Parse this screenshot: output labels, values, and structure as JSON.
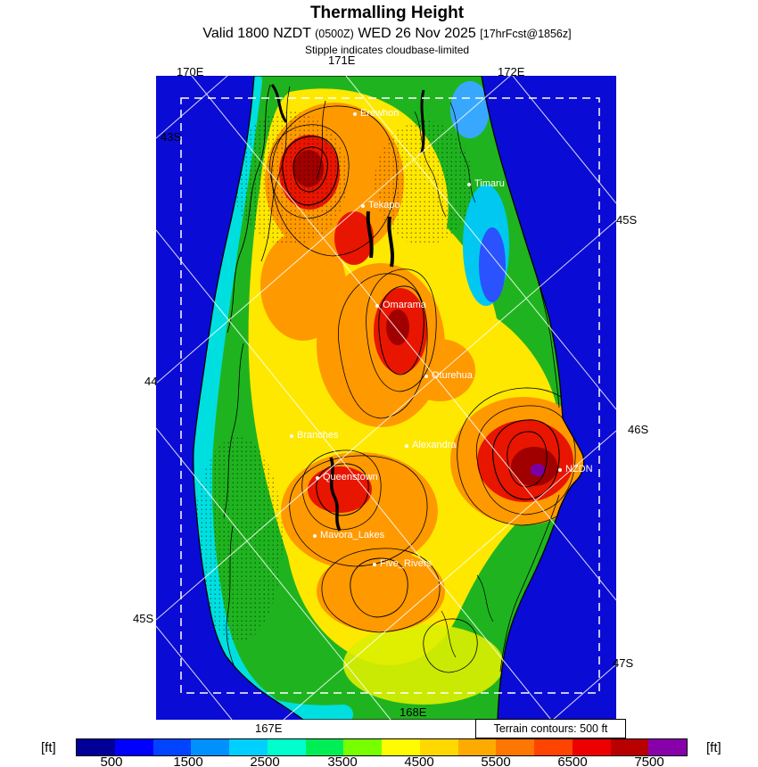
{
  "header": {
    "title": "Thermalling Height",
    "valid_prefix": "Valid 1800 NZDT",
    "valid_zulu": "(0500Z)",
    "valid_date": "WED 26 Nov 2025",
    "forecast_ref": "[17hrFcst@1856z]",
    "subtitle": "Stipple indicates cloudbase-limited"
  },
  "map": {
    "grid_labels": {
      "top": [
        "170E",
        "171E",
        "172E"
      ],
      "bottom": [
        "167E",
        "168E"
      ],
      "left": [
        "43S",
        "44",
        "45S"
      ],
      "right": [
        "45S",
        "46S",
        "47S"
      ]
    },
    "places": [
      {
        "name": "Erewhon"
      },
      {
        "name": "Timaru"
      },
      {
        "name": "Tekapo"
      },
      {
        "name": "Omarama"
      },
      {
        "name": "Oturehua"
      },
      {
        "name": "Branches"
      },
      {
        "name": "Alexandra"
      },
      {
        "name": "Queenstown"
      },
      {
        "name": "NZDN"
      },
      {
        "name": "Mavora_Lakes"
      },
      {
        "name": "Five_Rivers"
      }
    ],
    "terrain_note": "Terrain contours: 500 ft",
    "ocean_color": "#0b0bd6"
  },
  "colorbar": {
    "unit_left": "[ft]",
    "unit_right": "[ft]",
    "tick_labels": [
      "500",
      "1500",
      "2500",
      "3500",
      "4500",
      "5500",
      "6500",
      "7500"
    ],
    "segments": [
      "#000099",
      "#0000ff",
      "#0044ff",
      "#0090ff",
      "#00d0ff",
      "#00ffcc",
      "#00ee55",
      "#77ff00",
      "#fffb00",
      "#ffd800",
      "#ffaa00",
      "#ff7700",
      "#ff4400",
      "#ee0000",
      "#b80000",
      "#8800aa"
    ]
  },
  "chart_data": {
    "type": "heatmap",
    "title": "Thermalling Height",
    "units": "ft",
    "scale_ticks": [
      500,
      1500,
      2500,
      3500,
      4500,
      5500,
      6500,
      7500
    ],
    "scale_range": [
      0,
      8000
    ],
    "scale_step": 500,
    "scale_colors": [
      "#000099",
      "#0000ff",
      "#0044ff",
      "#0090ff",
      "#00d0ff",
      "#00ffcc",
      "#00ee55",
      "#77ff00",
      "#fffb00",
      "#ffd800",
      "#ffaa00",
      "#ff7700",
      "#ff4400",
      "#ee0000",
      "#b80000",
      "#8800aa"
    ],
    "notes": [
      "Stipple indicates cloudbase-limited",
      "Terrain contours: 500 ft"
    ]
  }
}
